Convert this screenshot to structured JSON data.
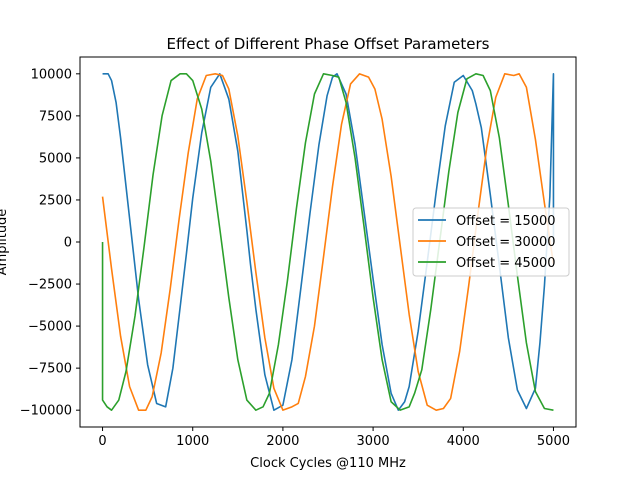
{
  "chart_data": {
    "type": "line",
    "title": "Effect of Different Phase Offset Parameters",
    "xlabel": "Clock Cycles @110 MHz",
    "ylabel": "Amplitude",
    "xlim": [
      -250,
      5250
    ],
    "ylim": [
      -11000,
      11000
    ],
    "xticks": [
      0,
      1000,
      2000,
      3000,
      4000,
      5000
    ],
    "yticks": [
      -10000,
      -7500,
      -5000,
      -2500,
      0,
      2500,
      5000,
      7500,
      10000
    ],
    "grid": false,
    "legend_position": "center-right",
    "series": [
      {
        "name": "Offset = 15000",
        "color": "#1f77b4",
        "x": [
          0,
          62,
          100,
          150,
          200,
          300,
          400,
          500,
          600,
          700,
          780,
          860,
          930,
          1000,
          1100,
          1200,
          1300,
          1400,
          1500,
          1600,
          1640,
          1700,
          1800,
          1900,
          2000,
          2100,
          2200,
          2300,
          2400,
          2490,
          2550,
          2600,
          2700,
          2800,
          2900,
          3000,
          3100,
          3200,
          3280,
          3350,
          3400,
          3500,
          3600,
          3700,
          3800,
          3900,
          4000,
          4100,
          4140,
          4200,
          4300,
          4400,
          4500,
          4600,
          4700,
          4800,
          4850,
          4900,
          4960,
          5000,
          5000
        ],
        "y": [
          10000,
          10000,
          9600,
          8300,
          6200,
          1400,
          -3400,
          -7300,
          -9600,
          -9800,
          -7500,
          -3900,
          -700,
          2600,
          6500,
          9200,
          10000,
          8500,
          5400,
          700,
          -1300,
          -4000,
          -7900,
          -10000,
          -9700,
          -7000,
          -2700,
          1700,
          5800,
          8700,
          9800,
          10000,
          8800,
          5800,
          1800,
          -2200,
          -6100,
          -9000,
          -10000,
          -9500,
          -8600,
          -5300,
          -1200,
          3000,
          6900,
          9500,
          9900,
          9000,
          8200,
          6800,
          2800,
          -1400,
          -5700,
          -8800,
          -9900,
          -8700,
          -6000,
          -2600,
          2700,
          10000,
          0
        ]
      },
      {
        "name": "Offset = 30000",
        "color": "#ff7f0e",
        "x": [
          0,
          100,
          200,
          300,
          400,
          480,
          550,
          650,
          750,
          850,
          950,
          1050,
          1150,
          1250,
          1330,
          1400,
          1500,
          1600,
          1700,
          1800,
          1900,
          2000,
          2100,
          2170,
          2250,
          2350,
          2450,
          2550,
          2650,
          2750,
          2850,
          2950,
          3020,
          3100,
          3200,
          3300,
          3400,
          3500,
          3600,
          3700,
          3780,
          3860,
          3960,
          4060,
          4160,
          4260,
          4360,
          4460,
          4560,
          4620,
          4700,
          4800,
          4900,
          5000
        ],
        "y": [
          2700,
          -1600,
          -5600,
          -8600,
          -10000,
          -10000,
          -9200,
          -6600,
          -2800,
          1400,
          5300,
          8500,
          9900,
          10000,
          9900,
          9100,
          6300,
          2400,
          -1800,
          -5700,
          -8700,
          -10000,
          -9800,
          -9600,
          -8000,
          -5000,
          -900,
          3300,
          7000,
          9400,
          10000,
          9800,
          9100,
          7300,
          3900,
          -200,
          -4300,
          -7700,
          -9700,
          -10000,
          -9900,
          -9300,
          -6500,
          -2600,
          1600,
          5600,
          8600,
          10000,
          9900,
          10000,
          9200,
          6100,
          2300,
          -1300
        ]
      },
      {
        "name": "Offset = 45000",
        "color": "#2ca02c",
        "x": [
          0,
          0,
          50,
          100,
          180,
          260,
          360,
          460,
          560,
          660,
          760,
          860,
          930,
          1000,
          1100,
          1200,
          1300,
          1400,
          1500,
          1600,
          1700,
          1780,
          1850,
          1950,
          2050,
          2150,
          2250,
          2350,
          2450,
          2550,
          2620,
          2700,
          2800,
          2900,
          3000,
          3100,
          3200,
          3300,
          3400,
          3460,
          3540,
          3640,
          3740,
          3840,
          3940,
          4040,
          4140,
          4220,
          4300,
          4400,
          4500,
          4600,
          4700,
          4800,
          4900,
          5000
        ],
        "y": [
          0,
          -9400,
          -9800,
          -10000,
          -9400,
          -7700,
          -4400,
          -300,
          4000,
          7500,
          9600,
          10000,
          10000,
          9600,
          7900,
          4800,
          800,
          -3300,
          -7000,
          -9400,
          -10000,
          -9800,
          -9000,
          -6100,
          -2300,
          2000,
          5900,
          8800,
          10000,
          9900,
          9800,
          8300,
          5000,
          900,
          -3300,
          -7000,
          -9500,
          -10000,
          -9800,
          -9000,
          -7600,
          -4000,
          100,
          4200,
          7700,
          9700,
          10000,
          9900,
          9000,
          6200,
          2200,
          -2000,
          -6000,
          -8900,
          -9900,
          -10000
        ]
      }
    ]
  }
}
